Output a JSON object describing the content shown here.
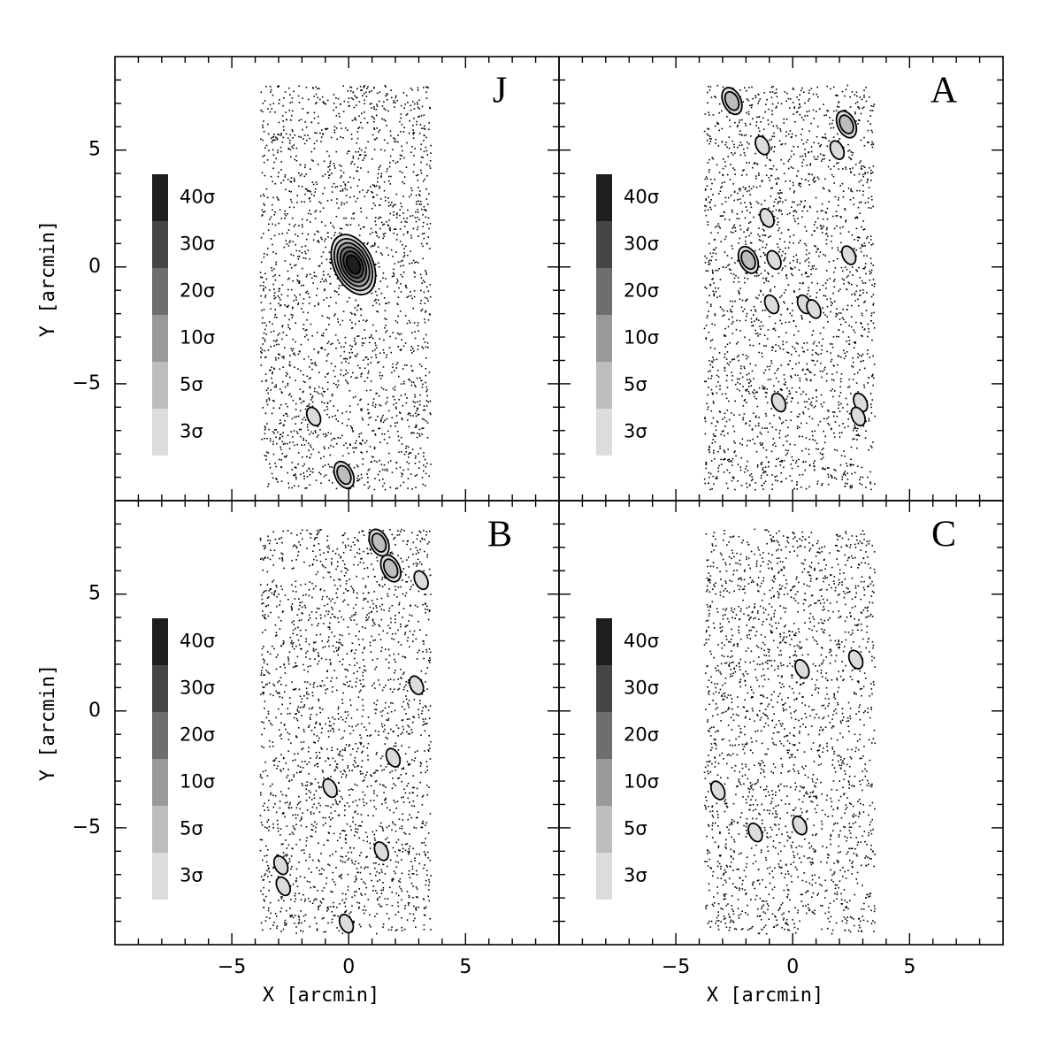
{
  "chart_data": [
    {
      "type": "density_map",
      "panel_label": "J",
      "ylabel": "Y [arcmin]",
      "xlim": [
        -10,
        9
      ],
      "ylim": [
        -10,
        9
      ],
      "xticks": [
        {
          "value": -5,
          "label": "−5"
        },
        0,
        5
      ],
      "yticks": [
        {
          "value": -5,
          "label": "−5"
        },
        0,
        5
      ],
      "xminorticks": [
        -9,
        -8,
        -7,
        -6,
        -4,
        -3,
        -2,
        -1,
        1,
        2,
        3,
        4,
        6,
        7,
        8
      ],
      "yminorticks": [
        -9,
        -8,
        -7,
        -6,
        -4,
        -3,
        -2,
        -1,
        1,
        2,
        3,
        4,
        6,
        7,
        8
      ],
      "legend": [
        {
          "value": 3,
          "label": "3σ"
        },
        {
          "value": 5,
          "label": "5σ"
        },
        {
          "value": 10,
          "label": "10σ"
        },
        {
          "value": 20,
          "label": "20σ"
        },
        {
          "value": 30,
          "label": "30σ"
        },
        {
          "value": 40,
          "label": "40σ"
        }
      ],
      "legend_colors": [
        "#dcdcdc",
        "#bdbdbd",
        "#999999",
        "#6e6e6e",
        "#454545",
        "#1e1e1e"
      ],
      "x": [
        0.2,
        -1.5,
        -0.2
      ],
      "y": [
        0.1,
        -6.4,
        -8.9
      ],
      "levels": [
        40,
        3,
        5
      ]
    },
    {
      "type": "density_map",
      "panel_label": "A",
      "xlim": [
        -10,
        9
      ],
      "ylim": [
        -10,
        9
      ],
      "xticks": [
        {
          "value": -5,
          "label": "−5"
        },
        0,
        5
      ],
      "yticks": [
        {
          "value": -5,
          "label": "−5"
        },
        0,
        5
      ],
      "xminorticks": [
        -9,
        -8,
        -7,
        -6,
        -4,
        -3,
        -2,
        -1,
        1,
        2,
        3,
        4,
        6,
        7,
        8
      ],
      "yminorticks": [
        -9,
        -8,
        -7,
        -6,
        -4,
        -3,
        -2,
        -1,
        1,
        2,
        3,
        4,
        6,
        7,
        8
      ],
      "legend": [
        {
          "value": 3,
          "label": "3σ"
        },
        {
          "value": 5,
          "label": "5σ"
        },
        {
          "value": 10,
          "label": "10σ"
        },
        {
          "value": 20,
          "label": "20σ"
        },
        {
          "value": 30,
          "label": "30σ"
        },
        {
          "value": 40,
          "label": "40σ"
        }
      ],
      "legend_colors": [
        "#dcdcdc",
        "#bdbdbd",
        "#999999",
        "#6e6e6e",
        "#454545",
        "#1e1e1e"
      ],
      "x": [
        -2.6,
        2.3,
        1.9,
        -1.3,
        -1.1,
        -1.9,
        -0.8,
        2.4,
        -0.9,
        0.5,
        0.9,
        -0.6,
        2.9,
        2.8
      ],
      "y": [
        7.1,
        6.1,
        5.0,
        5.2,
        2.1,
        0.3,
        0.3,
        0.5,
        -1.6,
        -1.6,
        -1.8,
        -5.8,
        -5.8,
        -6.4
      ],
      "levels": [
        5,
        5,
        3,
        3,
        3,
        5,
        3,
        3,
        3,
        3,
        3,
        3,
        3,
        3
      ]
    },
    {
      "type": "density_map",
      "panel_label": "B",
      "xlabel": "X [arcmin]",
      "ylabel": "Y [arcmin]",
      "xlim": [
        -10,
        9
      ],
      "ylim": [
        -10,
        9
      ],
      "xticks": [
        {
          "value": -5,
          "label": "−5"
        },
        0,
        5
      ],
      "yticks": [
        {
          "value": -5,
          "label": "−5"
        },
        0,
        5
      ],
      "xminorticks": [
        -9,
        -8,
        -7,
        -6,
        -4,
        -3,
        -2,
        -1,
        1,
        2,
        3,
        4,
        6,
        7,
        8
      ],
      "yminorticks": [
        -9,
        -8,
        -7,
        -6,
        -4,
        -3,
        -2,
        -1,
        1,
        2,
        3,
        4,
        6,
        7,
        8
      ],
      "legend": [
        {
          "value": 3,
          "label": "3σ"
        },
        {
          "value": 5,
          "label": "5σ"
        },
        {
          "value": 10,
          "label": "10σ"
        },
        {
          "value": 20,
          "label": "20σ"
        },
        {
          "value": 30,
          "label": "30σ"
        },
        {
          "value": 40,
          "label": "40σ"
        }
      ],
      "legend_colors": [
        "#dcdcdc",
        "#bdbdbd",
        "#999999",
        "#6e6e6e",
        "#454545",
        "#1e1e1e"
      ],
      "x": [
        1.3,
        1.8,
        3.1,
        2.9,
        1.9,
        -0.8,
        -2.9,
        -2.8,
        1.4,
        -0.1
      ],
      "y": [
        7.2,
        6.1,
        5.6,
        1.1,
        -2.0,
        -3.3,
        -6.6,
        -7.5,
        -6.0,
        -9.1
      ],
      "levels": [
        5,
        5,
        3,
        3,
        3,
        3,
        3,
        3,
        3,
        3
      ]
    },
    {
      "type": "density_map",
      "panel_label": "C",
      "xlabel": "X [arcmin]",
      "xlim": [
        -10,
        9
      ],
      "ylim": [
        -10,
        9
      ],
      "xticks": [
        {
          "value": -5,
          "label": "−5"
        },
        0,
        5
      ],
      "yticks": [
        {
          "value": -5,
          "label": "−5"
        },
        0,
        5
      ],
      "xminorticks": [
        -9,
        -8,
        -7,
        -6,
        -4,
        -3,
        -2,
        -1,
        1,
        2,
        3,
        4,
        6,
        7,
        8
      ],
      "yminorticks": [
        -9,
        -8,
        -7,
        -6,
        -4,
        -3,
        -2,
        -1,
        1,
        2,
        3,
        4,
        6,
        7,
        8
      ],
      "legend": [
        {
          "value": 3,
          "label": "3σ"
        },
        {
          "value": 5,
          "label": "5σ"
        },
        {
          "value": 10,
          "label": "10σ"
        },
        {
          "value": 20,
          "label": "20σ"
        },
        {
          "value": 30,
          "label": "30σ"
        },
        {
          "value": 40,
          "label": "40σ"
        }
      ],
      "legend_colors": [
        "#dcdcdc",
        "#bdbdbd",
        "#999999",
        "#6e6e6e",
        "#454545",
        "#1e1e1e"
      ],
      "x": [
        0.4,
        2.7,
        -3.2,
        -1.6,
        0.3
      ],
      "y": [
        1.8,
        2.2,
        -3.4,
        -5.2,
        -4.9
      ],
      "levels": [
        3,
        3,
        3,
        3,
        3
      ]
    }
  ]
}
